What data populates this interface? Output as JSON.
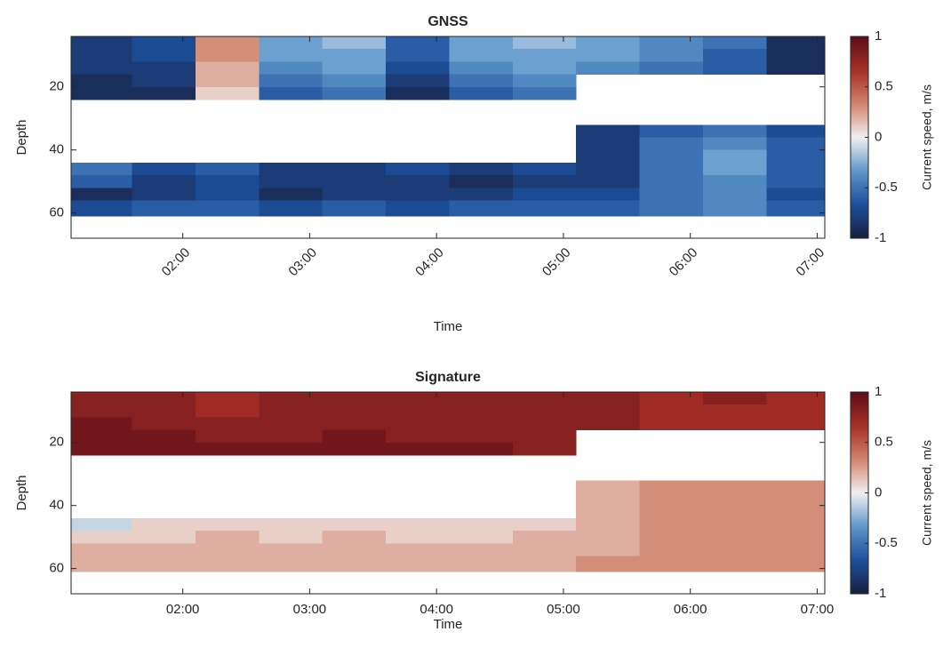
{
  "chart_data": [
    {
      "type": "heatmap",
      "title": "GNSS",
      "xlabel": "Time",
      "ylabel": "Depth",
      "colorbar_label": "Current speed, m/s",
      "x_edges": [
        1.12,
        1.6,
        2.1,
        2.6,
        3.1,
        3.6,
        4.1,
        4.6,
        5.1,
        5.6,
        6.1,
        6.6,
        7.06
      ],
      "y_edges": [
        4,
        8,
        12,
        16,
        20,
        24,
        28,
        32,
        36,
        40,
        44,
        48,
        52,
        56,
        61
      ],
      "z": [
        [
          -0.8,
          -0.7,
          0.3,
          -0.3,
          -0.2,
          -0.6,
          -0.3,
          -0.2,
          -0.3,
          -0.4,
          -0.5,
          -0.9
        ],
        [
          -0.8,
          -0.7,
          0.3,
          -0.3,
          -0.3,
          -0.6,
          -0.3,
          -0.3,
          -0.3,
          -0.4,
          -0.6,
          -0.9
        ],
        [
          -0.8,
          -0.8,
          0.2,
          -0.4,
          -0.3,
          -0.7,
          -0.4,
          -0.3,
          -0.4,
          -0.5,
          -0.6,
          -0.9
        ],
        [
          -0.9,
          -0.8,
          0.2,
          -0.5,
          -0.4,
          -0.8,
          -0.5,
          -0.4,
          null,
          null,
          null,
          null
        ],
        [
          -0.9,
          -0.9,
          0.1,
          -0.6,
          -0.5,
          -0.9,
          -0.6,
          -0.5,
          null,
          null,
          null,
          null
        ],
        [
          null,
          null,
          null,
          null,
          null,
          null,
          null,
          null,
          null,
          null,
          null,
          null
        ],
        [
          null,
          null,
          null,
          null,
          null,
          null,
          null,
          null,
          null,
          null,
          null,
          null
        ],
        [
          null,
          null,
          null,
          null,
          null,
          null,
          null,
          null,
          -0.8,
          -0.6,
          -0.5,
          -0.7
        ],
        [
          null,
          null,
          null,
          null,
          null,
          null,
          null,
          null,
          -0.8,
          -0.5,
          -0.4,
          -0.6
        ],
        [
          null,
          null,
          null,
          null,
          null,
          null,
          null,
          null,
          -0.8,
          -0.5,
          -0.3,
          -0.6
        ],
        [
          -0.5,
          -0.7,
          -0.6,
          -0.8,
          -0.8,
          -0.7,
          -0.8,
          -0.7,
          -0.8,
          -0.5,
          -0.3,
          -0.6
        ],
        [
          -0.6,
          -0.8,
          -0.7,
          -0.8,
          -0.8,
          -0.8,
          -0.9,
          -0.8,
          -0.8,
          -0.5,
          -0.4,
          -0.6
        ],
        [
          -0.9,
          -0.8,
          -0.7,
          -0.9,
          -0.8,
          -0.8,
          -0.8,
          -0.7,
          -0.7,
          -0.5,
          -0.4,
          -0.7
        ],
        [
          -0.7,
          -0.6,
          -0.6,
          -0.7,
          -0.6,
          -0.7,
          -0.6,
          -0.6,
          -0.6,
          -0.5,
          -0.4,
          -0.6
        ]
      ],
      "xlim": [
        1.12,
        7.06
      ],
      "ylim": [
        4,
        68
      ],
      "y_reversed": true,
      "xticks": [
        {
          "value": 2,
          "label": "02:00"
        },
        {
          "value": 3,
          "label": "03:00"
        },
        {
          "value": 4,
          "label": "04:00"
        },
        {
          "value": 5,
          "label": "05:00"
        },
        {
          "value": 6,
          "label": "06:00"
        },
        {
          "value": 7,
          "label": "07:00"
        }
      ],
      "xtick_rotation": 45,
      "yticks": [
        20,
        40,
        60
      ],
      "clim": [
        -1,
        1
      ],
      "cticks": [
        -1,
        -0.5,
        0,
        0.5,
        1
      ],
      "colormap": [
        "#17203f",
        "#1d4f9c",
        "#5d97cc",
        "#f2efee",
        "#d0836c",
        "#a52f26",
        "#5b0d16"
      ]
    },
    {
      "type": "heatmap",
      "title": "Signature",
      "xlabel": "Time",
      "ylabel": "Depth",
      "colorbar_label": "Current speed, m/s",
      "x_edges": [
        1.12,
        1.6,
        2.1,
        2.6,
        3.1,
        3.6,
        4.1,
        4.6,
        5.1,
        5.6,
        6.1,
        6.6,
        7.06
      ],
      "y_edges": [
        4,
        8,
        12,
        16,
        20,
        24,
        28,
        32,
        36,
        40,
        44,
        48,
        52,
        56,
        61
      ],
      "z": [
        [
          0.8,
          0.8,
          0.7,
          0.8,
          0.8,
          0.8,
          0.8,
          0.8,
          0.8,
          0.7,
          0.8,
          0.7
        ],
        [
          0.8,
          0.8,
          0.7,
          0.8,
          0.8,
          0.8,
          0.8,
          0.8,
          0.8,
          0.7,
          0.7,
          0.7
        ],
        [
          0.9,
          0.8,
          0.8,
          0.8,
          0.8,
          0.8,
          0.8,
          0.8,
          0.8,
          0.7,
          0.7,
          0.7
        ],
        [
          0.9,
          0.9,
          0.8,
          0.8,
          0.9,
          0.8,
          0.8,
          0.8,
          null,
          null,
          null,
          null
        ],
        [
          0.9,
          0.9,
          0.9,
          0.9,
          0.9,
          0.9,
          0.9,
          0.8,
          null,
          null,
          null,
          null
        ],
        [
          null,
          null,
          null,
          null,
          null,
          null,
          null,
          null,
          null,
          null,
          null,
          null
        ],
        [
          null,
          null,
          null,
          null,
          null,
          null,
          null,
          null,
          null,
          null,
          null,
          null
        ],
        [
          null,
          null,
          null,
          null,
          null,
          null,
          null,
          null,
          0.2,
          0.3,
          0.3,
          0.3
        ],
        [
          null,
          null,
          null,
          null,
          null,
          null,
          null,
          null,
          0.2,
          0.3,
          0.3,
          0.3
        ],
        [
          null,
          null,
          null,
          null,
          null,
          null,
          null,
          null,
          0.2,
          0.3,
          0.3,
          0.3
        ],
        [
          -0.1,
          0.1,
          0.1,
          0.1,
          0.1,
          0.1,
          0.1,
          0.1,
          0.2,
          0.3,
          0.3,
          0.3
        ],
        [
          0.1,
          0.1,
          0.2,
          0.1,
          0.2,
          0.1,
          0.1,
          0.2,
          0.2,
          0.3,
          0.3,
          0.3
        ],
        [
          0.2,
          0.2,
          0.2,
          0.2,
          0.2,
          0.2,
          0.2,
          0.2,
          0.2,
          0.3,
          0.3,
          0.3
        ],
        [
          0.2,
          0.2,
          0.2,
          0.2,
          0.2,
          0.2,
          0.2,
          0.2,
          0.3,
          0.3,
          0.3,
          0.3
        ]
      ],
      "xlim": [
        1.12,
        7.06
      ],
      "ylim": [
        4,
        68
      ],
      "y_reversed": true,
      "xticks": [
        {
          "value": 2,
          "label": "02:00"
        },
        {
          "value": 3,
          "label": "03:00"
        },
        {
          "value": 4,
          "label": "04:00"
        },
        {
          "value": 5,
          "label": "05:00"
        },
        {
          "value": 6,
          "label": "06:00"
        },
        {
          "value": 7,
          "label": "07:00"
        }
      ],
      "xtick_rotation": 0,
      "yticks": [
        20,
        40,
        60
      ],
      "clim": [
        -1,
        1
      ],
      "cticks": [
        -1,
        -0.5,
        0,
        0.5,
        1
      ],
      "colormap": [
        "#17203f",
        "#1d4f9c",
        "#5d97cc",
        "#f2efee",
        "#d0836c",
        "#a52f26",
        "#5b0d16"
      ]
    }
  ]
}
